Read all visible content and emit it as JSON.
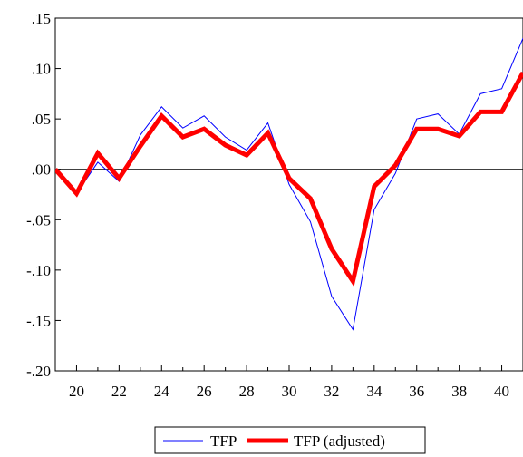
{
  "chart_data": {
    "type": "line",
    "title": "",
    "xlabel": "",
    "ylabel": "",
    "xlim": [
      19,
      41
    ],
    "ylim": [
      -0.2,
      0.15
    ],
    "grid": false,
    "zero_line": true,
    "legend_position": "bottom-center",
    "x": [
      19,
      20,
      21,
      22,
      23,
      24,
      25,
      26,
      27,
      28,
      29,
      30,
      31,
      32,
      33,
      34,
      35,
      36,
      37,
      38,
      39,
      40,
      41
    ],
    "x_ticks": [
      {
        "value": 20,
        "label": "20"
      },
      {
        "value": 22,
        "label": "22"
      },
      {
        "value": 24,
        "label": "24"
      },
      {
        "value": 26,
        "label": "26"
      },
      {
        "value": 28,
        "label": "28"
      },
      {
        "value": 30,
        "label": "30"
      },
      {
        "value": 32,
        "label": "32"
      },
      {
        "value": 34,
        "label": "34"
      },
      {
        "value": 36,
        "label": "36"
      },
      {
        "value": 38,
        "label": "38"
      },
      {
        "value": 40,
        "label": "40"
      }
    ],
    "y_ticks": [
      {
        "value": 0.15,
        "label": ".15"
      },
      {
        "value": 0.1,
        "label": ".10"
      },
      {
        "value": 0.05,
        "label": ".05"
      },
      {
        "value": 0.0,
        "label": ".00"
      },
      {
        "value": -0.05,
        "label": "-.05"
      },
      {
        "value": -0.1,
        "label": "-.10"
      },
      {
        "value": -0.15,
        "label": "-.15"
      },
      {
        "value": -0.2,
        "label": "-.20"
      }
    ],
    "series": [
      {
        "name": "TFP",
        "color": "#0000ff",
        "width": 1,
        "values": [
          0.0,
          -0.024,
          0.007,
          -0.012,
          0.034,
          0.062,
          0.041,
          0.053,
          0.032,
          0.019,
          0.046,
          -0.015,
          -0.052,
          -0.126,
          -0.159,
          -0.04,
          -0.004,
          0.05,
          0.055,
          0.035,
          0.075,
          0.08,
          0.13
        ]
      },
      {
        "name": "TFP (adjusted)",
        "color": "#ff0000",
        "width": 5,
        "values": [
          0.0,
          -0.024,
          0.016,
          -0.009,
          0.023,
          0.053,
          0.032,
          0.04,
          0.024,
          0.014,
          0.036,
          -0.009,
          -0.029,
          -0.079,
          -0.111,
          -0.017,
          0.004,
          0.04,
          0.04,
          0.033,
          0.057,
          0.057,
          0.096
        ]
      }
    ]
  }
}
